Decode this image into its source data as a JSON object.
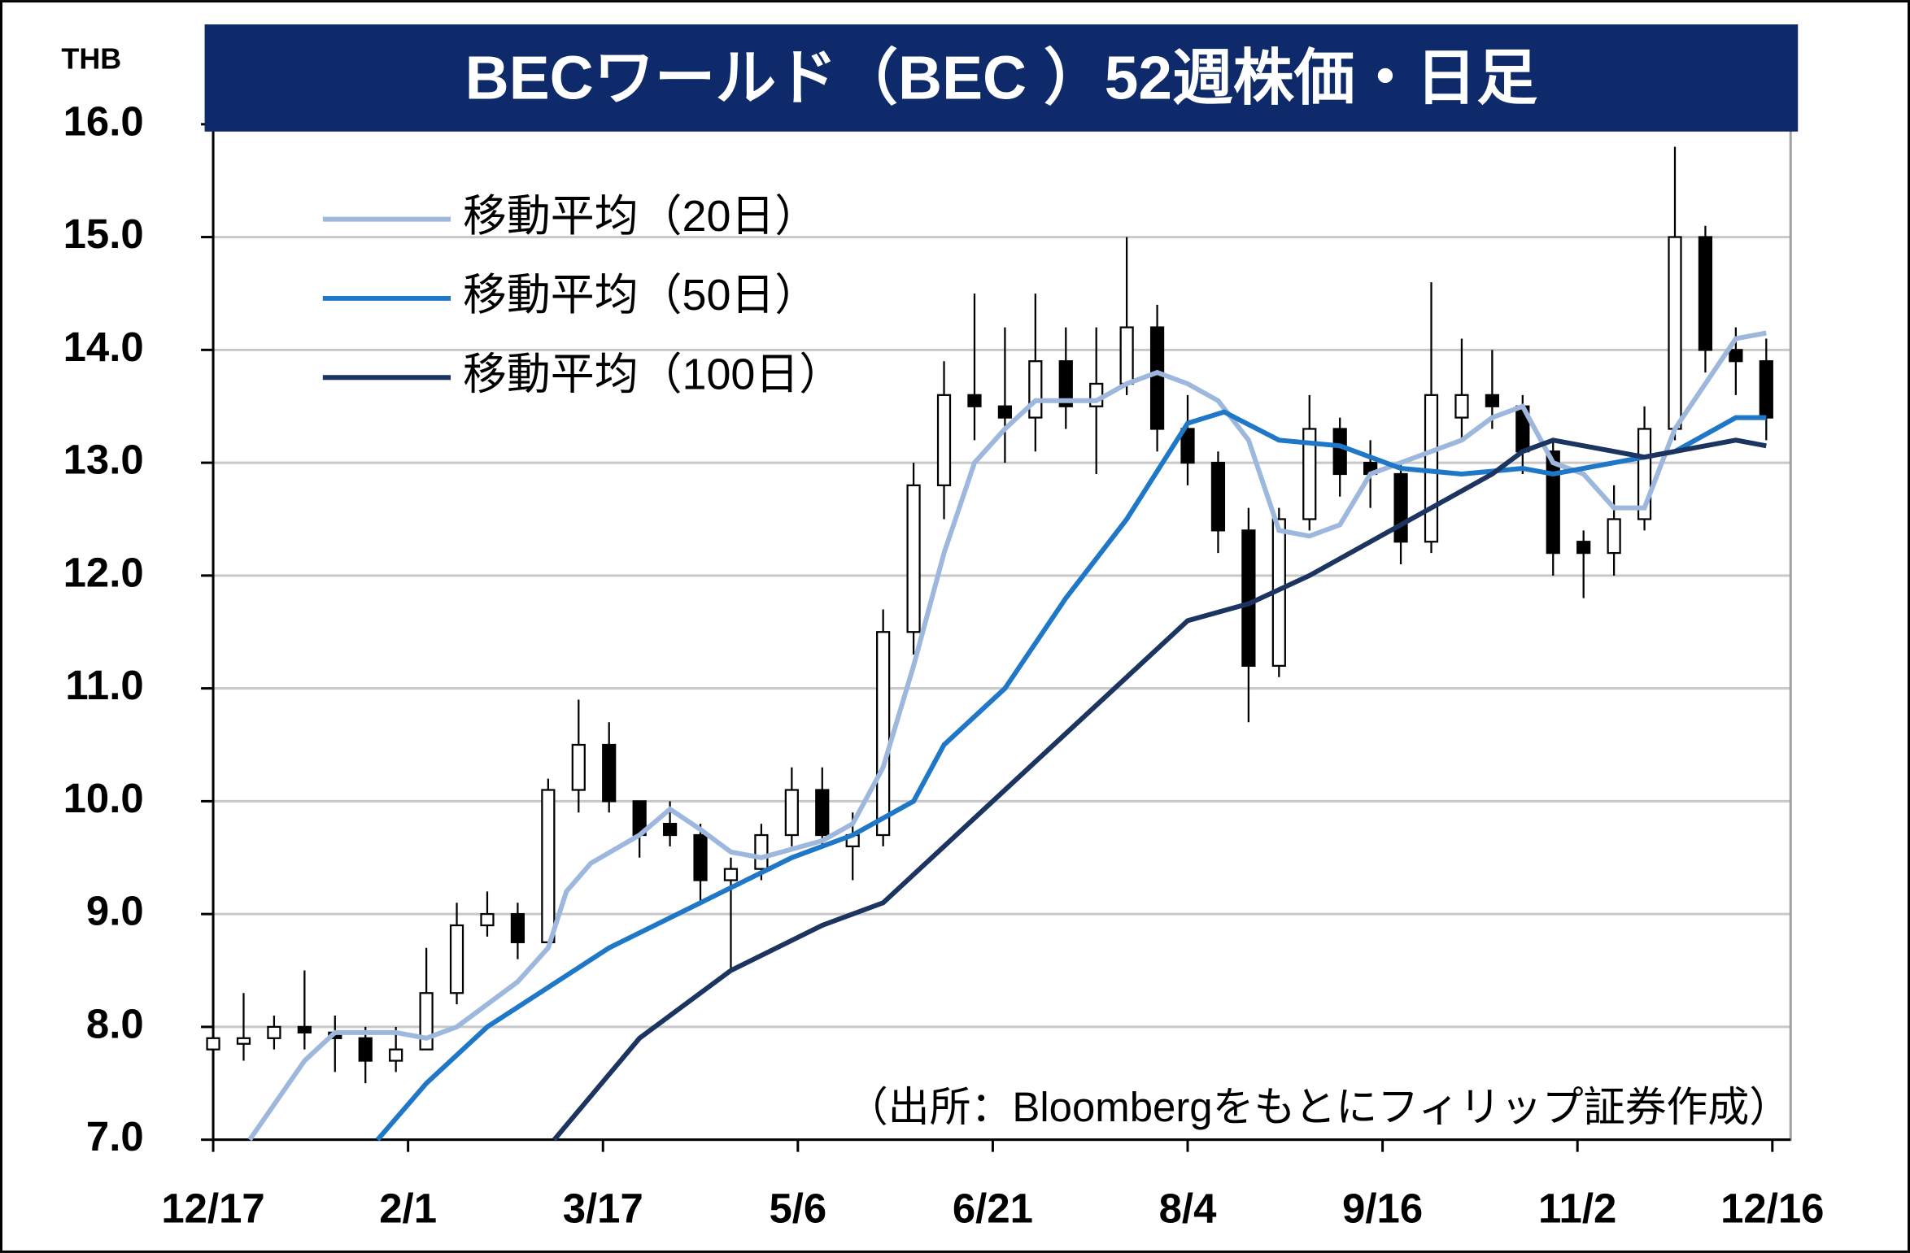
{
  "chart_data": {
    "type": "candlestick",
    "title": "BECワールド（BEC ）52週株価・日足",
    "y_axis_label": "THB",
    "note": "（出所：Bloombergをもとにフィリップ証券作成）",
    "xlim": [
      0,
      259
    ],
    "xticks": [
      {
        "value": 0,
        "label": "12/17"
      },
      {
        "value": 32,
        "label": "2/1"
      },
      {
        "value": 64,
        "label": "3/17"
      },
      {
        "value": 96,
        "label": "5/6"
      },
      {
        "value": 128,
        "label": "6/21"
      },
      {
        "value": 160,
        "label": "8/4"
      },
      {
        "value": 192,
        "label": "9/16"
      },
      {
        "value": 224,
        "label": "11/2"
      },
      {
        "value": 256,
        "label": "12/16"
      }
    ],
    "ylim": [
      7,
      16
    ],
    "yticks": [
      {
        "value": 7,
        "label": "7.0"
      },
      {
        "value": 8,
        "label": "8.0"
      },
      {
        "value": 9,
        "label": "9.0"
      },
      {
        "value": 10,
        "label": "10.0"
      },
      {
        "value": 11,
        "label": "11.0"
      },
      {
        "value": 12,
        "label": "12.0"
      },
      {
        "value": 13,
        "label": "13.0"
      },
      {
        "value": 14,
        "label": "14.0"
      },
      {
        "value": 15,
        "label": "15.0"
      },
      {
        "value": 16,
        "label": "16.0"
      }
    ],
    "grid": true,
    "legend": "upper-left",
    "up_color": "#ffffff",
    "down_color": "#000000",
    "x": [
      0,
      5,
      10,
      15,
      20,
      25,
      30,
      35,
      40,
      45,
      50,
      55,
      60,
      65,
      70,
      75,
      80,
      85,
      90,
      95,
      100,
      105,
      110,
      115,
      120,
      125,
      130,
      135,
      140,
      145,
      150,
      155,
      160,
      165,
      170,
      175,
      180,
      185,
      190,
      195,
      200,
      205,
      210,
      215,
      220,
      225,
      230,
      235,
      240,
      245,
      250,
      255
    ],
    "open": [
      7.8,
      7.85,
      7.9,
      8.0,
      7.95,
      7.9,
      7.7,
      7.8,
      8.3,
      8.9,
      9.0,
      8.75,
      10.1,
      10.5,
      10.0,
      9.8,
      9.7,
      9.3,
      9.4,
      9.7,
      10.1,
      9.6,
      9.7,
      11.5,
      12.8,
      13.6,
      13.5,
      13.4,
      13.9,
      13.5,
      13.7,
      14.2,
      13.3,
      13.0,
      12.4,
      11.2,
      12.5,
      13.3,
      13.0,
      12.9,
      12.3,
      13.4,
      13.6,
      13.5,
      13.1,
      12.3,
      12.2,
      12.5,
      13.3,
      15.0,
      14.0,
      13.9
    ],
    "high": [
      8.1,
      8.3,
      8.1,
      8.5,
      8.1,
      8.0,
      8.0,
      8.7,
      9.1,
      9.2,
      9.1,
      10.2,
      10.9,
      10.7,
      10.0,
      10.0,
      9.8,
      9.5,
      9.8,
      10.3,
      10.3,
      9.9,
      11.7,
      13.0,
      13.9,
      14.5,
      14.2,
      14.5,
      14.2,
      14.2,
      15.0,
      14.4,
      13.6,
      13.1,
      12.6,
      12.6,
      13.6,
      13.4,
      13.2,
      13.0,
      14.6,
      14.1,
      14.0,
      13.6,
      13.2,
      12.4,
      12.8,
      13.5,
      15.8,
      15.1,
      14.2,
      14.1
    ],
    "low": [
      7.5,
      7.7,
      7.8,
      7.8,
      7.6,
      7.5,
      7.6,
      7.8,
      8.2,
      8.8,
      8.6,
      8.7,
      9.9,
      9.9,
      9.5,
      9.6,
      9.1,
      8.5,
      9.3,
      9.6,
      9.6,
      9.3,
      9.6,
      11.3,
      12.5,
      13.2,
      13.0,
      13.1,
      13.3,
      12.9,
      13.6,
      13.1,
      12.8,
      12.2,
      10.7,
      11.1,
      12.4,
      12.7,
      12.6,
      12.1,
      12.2,
      13.2,
      13.3,
      12.9,
      12.0,
      11.8,
      12.0,
      12.4,
      13.2,
      13.8,
      13.6,
      13.2
    ],
    "close": [
      7.9,
      7.9,
      8.0,
      7.95,
      7.9,
      7.7,
      7.8,
      8.3,
      8.9,
      9.0,
      8.75,
      10.1,
      10.5,
      10.0,
      9.7,
      9.7,
      9.3,
      9.4,
      9.7,
      10.1,
      9.7,
      9.7,
      11.5,
      12.8,
      13.6,
      13.5,
      13.4,
      13.9,
      13.5,
      13.7,
      14.2,
      13.3,
      13.0,
      12.4,
      11.2,
      12.5,
      13.3,
      12.9,
      12.9,
      12.3,
      13.6,
      13.6,
      13.5,
      13.1,
      12.2,
      12.2,
      12.5,
      13.3,
      15.0,
      14.0,
      13.9,
      13.4
    ],
    "series": [
      {
        "name": "移動平均（20日）",
        "color": "#9db8dc",
        "x": [
          6,
          15,
          20,
          30,
          35,
          40,
          50,
          55,
          58,
          62,
          70,
          75,
          80,
          85,
          90,
          100,
          105,
          110,
          115,
          120,
          125,
          130,
          135,
          145,
          150,
          155,
          160,
          165,
          170,
          175,
          180,
          185,
          190,
          195,
          200,
          205,
          210,
          215,
          220,
          225,
          230,
          235,
          240,
          245,
          250,
          255
        ],
        "values": [
          7.0,
          7.7,
          7.95,
          7.95,
          7.9,
          8.0,
          8.4,
          8.7,
          9.2,
          9.45,
          9.7,
          9.93,
          9.75,
          9.55,
          9.5,
          9.65,
          9.8,
          10.3,
          11.2,
          12.2,
          13.0,
          13.3,
          13.55,
          13.55,
          13.7,
          13.8,
          13.7,
          13.55,
          13.2,
          12.4,
          12.35,
          12.45,
          12.9,
          13.0,
          13.1,
          13.2,
          13.4,
          13.5,
          13.0,
          12.9,
          12.6,
          12.6,
          13.3,
          13.7,
          14.1,
          14.15
        ]
      },
      {
        "name": "移動平均（50日）",
        "color": "#1f77c8",
        "x": [
          27,
          35,
          45,
          55,
          65,
          80,
          95,
          105,
          115,
          120,
          130,
          140,
          150,
          160,
          166,
          175,
          185,
          195,
          205,
          215,
          220,
          230,
          240,
          250,
          255
        ],
        "values": [
          7.0,
          7.5,
          8.0,
          8.35,
          8.7,
          9.1,
          9.5,
          9.7,
          10.0,
          10.5,
          11.0,
          11.8,
          12.5,
          13.35,
          13.45,
          13.2,
          13.15,
          12.95,
          12.9,
          12.95,
          12.9,
          13.0,
          13.1,
          13.4,
          13.4
        ]
      },
      {
        "name": "移動平均（100日）",
        "color": "#1b3560",
        "x": [
          56,
          70,
          85,
          100,
          110,
          120,
          130,
          140,
          150,
          160,
          170,
          180,
          190,
          200,
          210,
          215,
          220,
          230,
          235,
          245,
          250,
          255
        ],
        "values": [
          7.0,
          7.9,
          8.5,
          8.9,
          9.1,
          9.6,
          10.1,
          10.6,
          11.1,
          11.6,
          11.75,
          12.0,
          12.3,
          12.6,
          12.9,
          13.1,
          13.2,
          13.1,
          13.05,
          13.15,
          13.2,
          13.15
        ]
      }
    ]
  }
}
